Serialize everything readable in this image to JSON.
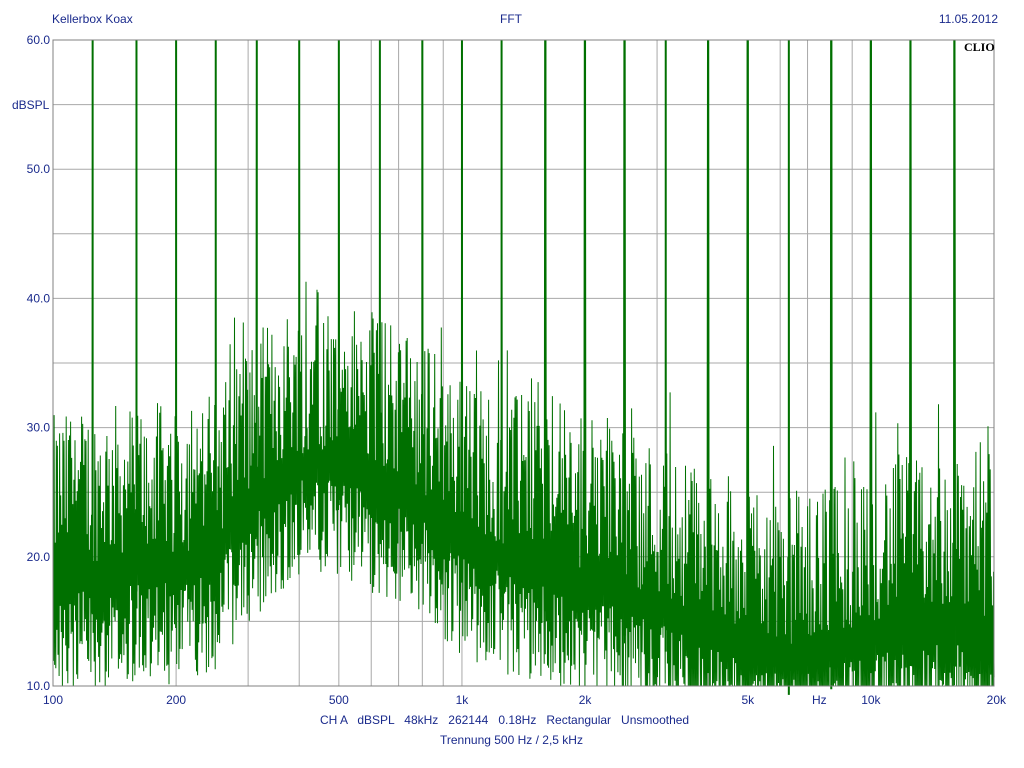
{
  "header": {
    "left": "Kellerbox Koax",
    "center": "FFT",
    "right": "11.05.2012",
    "watermark": "CLIO"
  },
  "footer": {
    "line1": "CH A   dBSPL   48kHz   262144   0.18Hz   Rectangular   Unsmoothed",
    "line2": "Trennung 500 Hz / 2,5 kHz"
  },
  "colors": {
    "trace": "#007000",
    "grid": "#a8a8a8",
    "text": "#1a2a8c",
    "background": "#ffffff"
  },
  "chart_data": {
    "type": "line",
    "title": "FFT",
    "ylabel": "dBSPL",
    "xlabel": "Hz",
    "xscale": "log",
    "xlim": [
      100,
      20000
    ],
    "ylim": [
      10,
      60
    ],
    "grid": true,
    "x_tick_labels": [
      {
        "value": 100,
        "label": "100"
      },
      {
        "value": 200,
        "label": "200"
      },
      {
        "value": 500,
        "label": "500"
      },
      {
        "value": 1000,
        "label": "1k"
      },
      {
        "value": 2000,
        "label": "2k"
      },
      {
        "value": 5000,
        "label": "5k"
      },
      {
        "value": 10000,
        "label": "10k"
      },
      {
        "value": 20000,
        "label": "20k"
      }
    ],
    "y_tick_labels": [
      {
        "value": 60,
        "label": "60.0"
      },
      {
        "value": 50,
        "label": "50.0"
      },
      {
        "value": 40,
        "label": "40.0"
      },
      {
        "value": 30,
        "label": "30.0"
      },
      {
        "value": 20,
        "label": "20.0"
      },
      {
        "value": 10,
        "label": "10.0"
      }
    ],
    "peaks_hz": [
      125,
      160,
      200,
      250,
      315,
      400,
      500,
      630,
      800,
      1000,
      1250,
      1600,
      2000,
      2500,
      3150,
      4000,
      5000,
      6300,
      8000,
      10000,
      12500,
      16000
    ],
    "peaks_db": [
      60,
      60,
      60,
      60,
      60,
      60,
      60,
      60,
      60,
      60,
      60,
      60,
      60,
      60,
      60,
      60,
      60,
      60,
      60,
      60,
      60,
      60
    ],
    "noise_floor_envelope": {
      "x": [
        100,
        150,
        200,
        250,
        300,
        400,
        500,
        600,
        800,
        1000,
        1500,
        2000,
        3000,
        4000,
        5000,
        7000,
        10000,
        15000,
        20000
      ],
      "y": [
        19,
        20,
        20,
        21,
        25,
        28,
        28,
        27,
        25,
        22,
        20,
        19,
        17,
        15,
        14,
        13,
        15,
        16,
        14
      ]
    }
  }
}
